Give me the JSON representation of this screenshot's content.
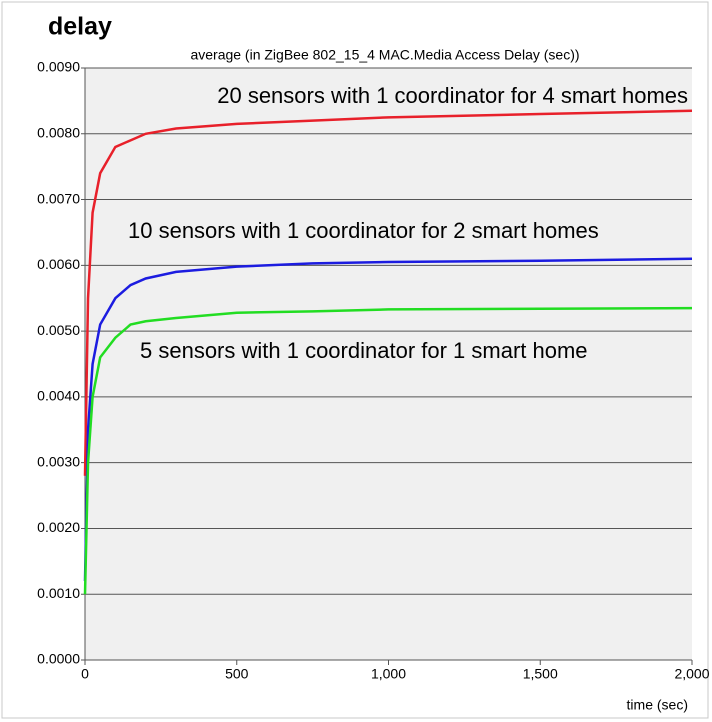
{
  "chart_data": {
    "type": "line",
    "title": "delay",
    "subtitle": "average (in ZigBee 802_15_4 MAC.Media Access Delay (sec))",
    "x_label": "time (sec)",
    "x": [
      0,
      10,
      25,
      50,
      100,
      150,
      200,
      300,
      500,
      750,
      1000,
      1500,
      2000
    ],
    "series": [
      {
        "name": "20 sensors with 1 coordinator for 4 smart homes",
        "color": "#e8202a",
        "values": [
          0.0028,
          0.0055,
          0.0068,
          0.0074,
          0.0078,
          0.0079,
          0.008,
          0.00808,
          0.00815,
          0.0082,
          0.00825,
          0.0083,
          0.00835
        ]
      },
      {
        "name": "10 sensors with 1 coordinator for 2 smart homes",
        "color": "#1c1ce0",
        "values": [
          0.0012,
          0.0035,
          0.0045,
          0.0051,
          0.0055,
          0.0057,
          0.0058,
          0.0059,
          0.00598,
          0.00603,
          0.00605,
          0.00607,
          0.0061
        ]
      },
      {
        "name": "5 sensors with 1 coordinator for 1 smart home",
        "color": "#22dd22",
        "values": [
          0.001,
          0.003,
          0.004,
          0.0046,
          0.0049,
          0.0051,
          0.00515,
          0.0052,
          0.00528,
          0.0053,
          0.00533,
          0.00534,
          0.00535
        ]
      }
    ],
    "xlim": [
      0,
      2000
    ],
    "xticks": [
      0,
      500,
      {
        "value": 1000,
        "label": "1,000"
      },
      {
        "value": 1500,
        "label": "1,500"
      },
      {
        "value": 2000,
        "label": "2,000"
      }
    ],
    "ylim": [
      0,
      0.009
    ],
    "yticks": [
      {
        "value": 0,
        "label": "0.0000"
      },
      {
        "value": 0.001,
        "label": "0.0010"
      },
      {
        "value": 0.002,
        "label": "0.0020"
      },
      {
        "value": 0.003,
        "label": "0.0030"
      },
      {
        "value": 0.004,
        "label": "0.0040"
      },
      {
        "value": 0.005,
        "label": "0.0050"
      },
      {
        "value": 0.006,
        "label": "0.0060"
      },
      {
        "value": 0.007,
        "label": "0.0070"
      },
      {
        "value": 0.008,
        "label": "0.0080"
      },
      {
        "value": 0.009,
        "label": "0.0090"
      }
    ],
    "grid": true
  }
}
